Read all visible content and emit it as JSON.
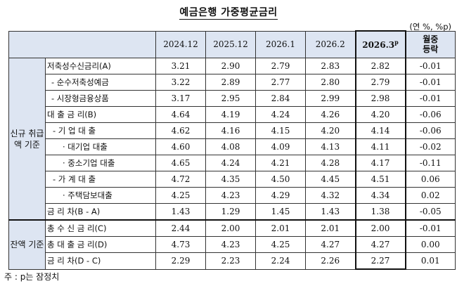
{
  "title": "예금은행 가중평균금리",
  "unit": "(연 %, %p)",
  "columns": [
    "2024.12",
    "2025.12",
    "2026.1",
    "2026.2",
    "2026.3",
    "월중 등락"
  ],
  "current_superscript": "p",
  "diff_header_line1": "월중",
  "diff_header_line2": "등락",
  "groups": {
    "new": "신규 취급액 기준",
    "balance": "잔액 기준"
  },
  "rows": [
    {
      "label": "저축성수신금리(A)",
      "values": [
        "3.21",
        "2.90",
        "2.79",
        "2.83",
        "2.82",
        "-0.01"
      ]
    },
    {
      "label": "- 순수저축성예금",
      "values": [
        "3.22",
        "2.89",
        "2.77",
        "2.80",
        "2.79",
        "-0.01"
      ]
    },
    {
      "label": "- 시장형금융상품",
      "values": [
        "3.17",
        "2.95",
        "2.84",
        "2.99",
        "2.98",
        "-0.01"
      ]
    },
    {
      "label": "대 출 금 리(B)",
      "values": [
        "4.64",
        "4.19",
        "4.24",
        "4.26",
        "4.20",
        "-0.06"
      ]
    },
    {
      "label": "- 기 업 대 출",
      "values": [
        "4.62",
        "4.16",
        "4.15",
        "4.20",
        "4.14",
        "-0.06"
      ]
    },
    {
      "label": "· 대기업 대출",
      "values": [
        "4.60",
        "4.08",
        "4.09",
        "4.13",
        "4.11",
        "-0.02"
      ]
    },
    {
      "label": "· 중소기업 대출",
      "values": [
        "4.65",
        "4.24",
        "4.21",
        "4.28",
        "4.17",
        "-0.11"
      ]
    },
    {
      "label": "- 가 계 대 출",
      "values": [
        "4.72",
        "4.35",
        "4.50",
        "4.45",
        "4.51",
        "0.06"
      ]
    },
    {
      "label": "· 주택담보대출",
      "values": [
        "4.25",
        "4.23",
        "4.29",
        "4.32",
        "4.34",
        "0.02"
      ]
    },
    {
      "label": "금 리 차(B - A)",
      "values": [
        "1.43",
        "1.29",
        "1.45",
        "1.43",
        "1.38",
        "-0.05"
      ]
    },
    {
      "label": "총 수 신 금 리(C)",
      "values": [
        "2.44",
        "2.00",
        "2.01",
        "2.01",
        "2.00",
        "-0.01"
      ]
    },
    {
      "label": "총 대 출 금 리(D)",
      "values": [
        "4.73",
        "4.23",
        "4.25",
        "4.27",
        "4.27",
        "0.00"
      ]
    },
    {
      "label": "금 리 차(D - C)",
      "values": [
        "2.29",
        "2.23",
        "2.24",
        "2.26",
        "2.27",
        "0.01"
      ]
    }
  ],
  "note": "주 : p는 잠정치"
}
